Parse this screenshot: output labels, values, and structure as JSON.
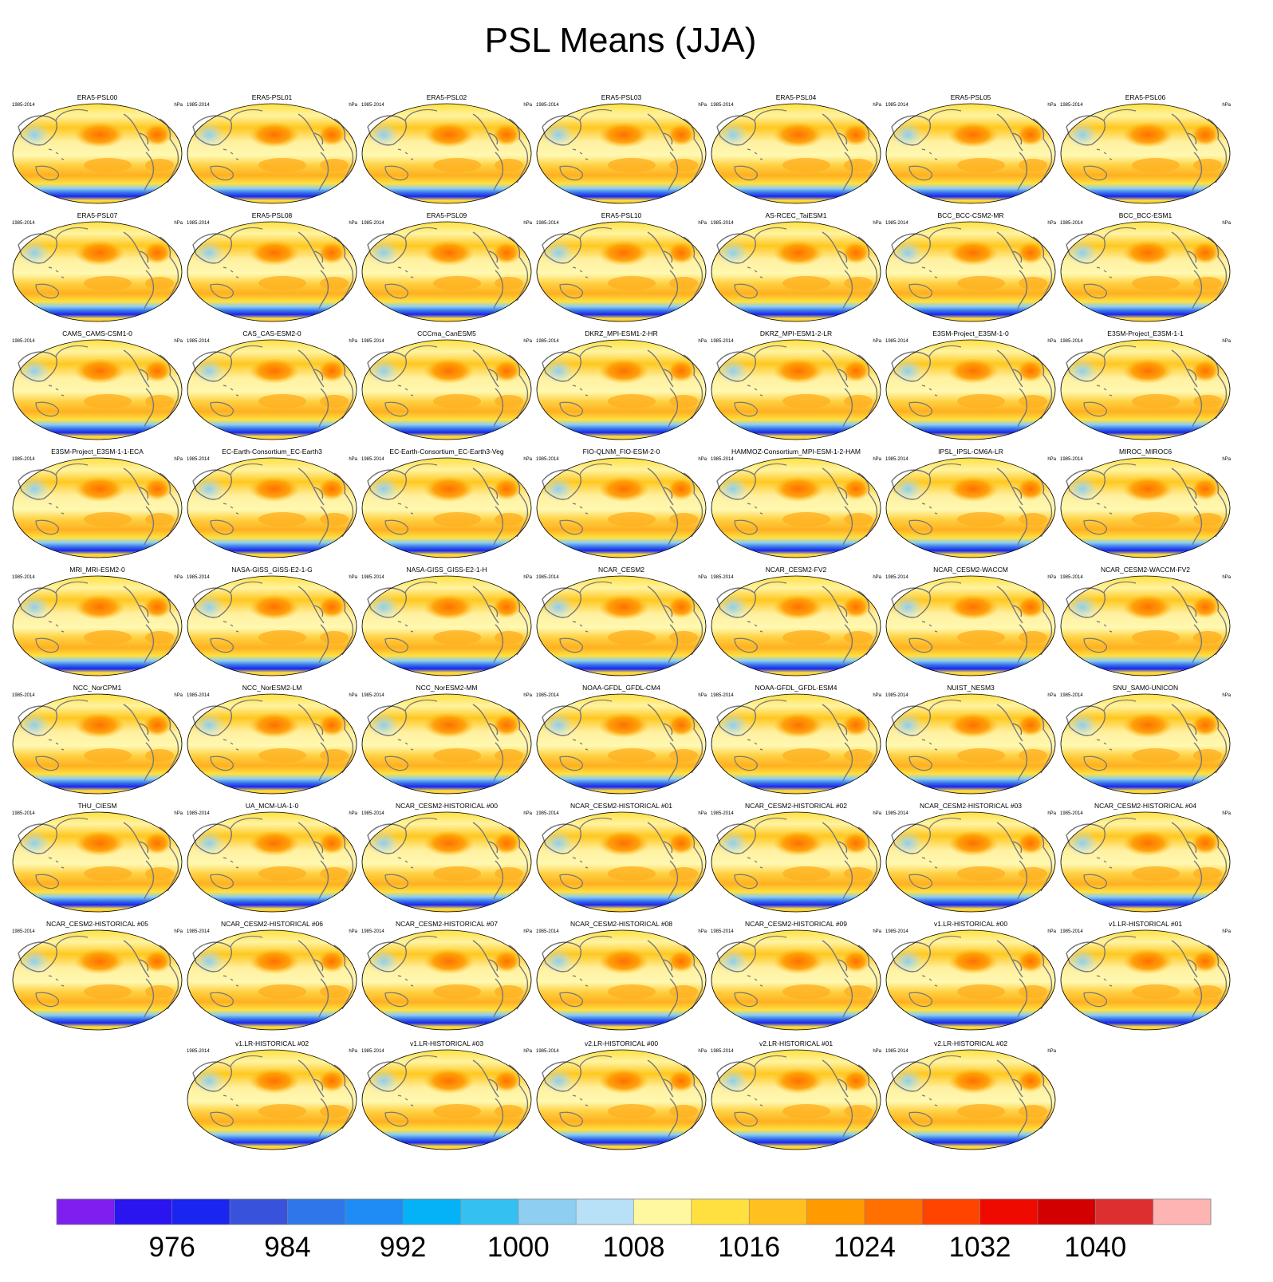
{
  "chart_data": {
    "type": "panel-map-grid",
    "title": "PSL Means (JJA)",
    "left_label": "1985-2014",
    "right_label": "hPa",
    "panels": [
      "ERA5-PSL00",
      "ERA5-PSL01",
      "ERA5-PSL02",
      "ERA5-PSL03",
      "ERA5-PSL04",
      "ERA5-PSL05",
      "ERA5-PSL06",
      "ERA5-PSL07",
      "ERA5-PSL08",
      "ERA5-PSL09",
      "ERA5-PSL10",
      "AS-RCEC_TaiESM1",
      "BCC_BCC-CSM2-MR",
      "BCC_BCC-ESM1",
      "CAMS_CAMS-CSM1-0",
      "CAS_CAS-ESM2-0",
      "CCCma_CanESM5",
      "DKRZ_MPI-ESM1-2-HR",
      "DKRZ_MPI-ESM1-2-LR",
      "E3SM-Project_E3SM-1-0",
      "E3SM-Project_E3SM-1-1",
      "E3SM-Project_E3SM-1-1-ECA",
      "EC-Earth-Consortium_EC-Earth3",
      "EC-Earth-Consortium_EC-Earth3-Veg",
      "FIO-QLNM_FIO-ESM-2-0",
      "HAMMOZ-Consortium_MPI-ESM-1-2-HAM",
      "IPSL_IPSL-CM6A-LR",
      "MIROC_MIROC6",
      "MRI_MRI-ESM2-0",
      "NASA-GISS_GISS-E2-1-G",
      "NASA-GISS_GISS-E2-1-H",
      "NCAR_CESM2",
      "NCAR_CESM2-FV2",
      "NCAR_CESM2-WACCM",
      "NCAR_CESM2-WACCM-FV2",
      "NCC_NorCPM1",
      "NCC_NorESM2-LM",
      "NCC_NorESM2-MM",
      "NOAA-GFDL_GFDL-CM4",
      "NOAA-GFDL_GFDL-ESM4",
      "NUIST_NESM3",
      "SNU_SAM0-UNICON",
      "THU_CIESM",
      "UA_MCM-UA-1-0",
      "NCAR_CESM2-HISTORICAL  #00",
      "NCAR_CESM2-HISTORICAL  #01",
      "NCAR_CESM2-HISTORICAL  #02",
      "NCAR_CESM2-HISTORICAL  #03",
      "NCAR_CESM2-HISTORICAL  #04",
      "NCAR_CESM2-HISTORICAL  #05",
      "NCAR_CESM2-HISTORICAL  #06",
      "NCAR_CESM2-HISTORICAL  #07",
      "NCAR_CESM2-HISTORICAL  #08",
      "NCAR_CESM2-HISTORICAL  #09",
      "v1.LR-HISTORICAL  #00",
      "v1.LR-HISTORICAL  #01",
      "v1.LR-HISTORICAL  #02",
      "v1.LR-HISTORICAL  #03",
      "v2.LR-HISTORICAL  #00",
      "v2.LR-HISTORICAL  #01",
      "v2.LR-HISTORICAL  #02"
    ],
    "colorbar": {
      "colors": [
        "#7f1fef",
        "#2a14f0",
        "#1a25ef",
        "#3852dc",
        "#2e76ea",
        "#1e8cf4",
        "#05b2f7",
        "#35c0f2",
        "#8dcef1",
        "#b8e0f6",
        "#fff8a0",
        "#ffe040",
        "#ffc020",
        "#ff9a00",
        "#ff7000",
        "#ff4400",
        "#ef0a00",
        "#d20000",
        "#dc3030",
        "#ffb4b4"
      ],
      "tick_labels": [
        "976",
        "984",
        "992",
        "1000",
        "1008",
        "1016",
        "1024",
        "1032",
        "1040"
      ]
    }
  }
}
